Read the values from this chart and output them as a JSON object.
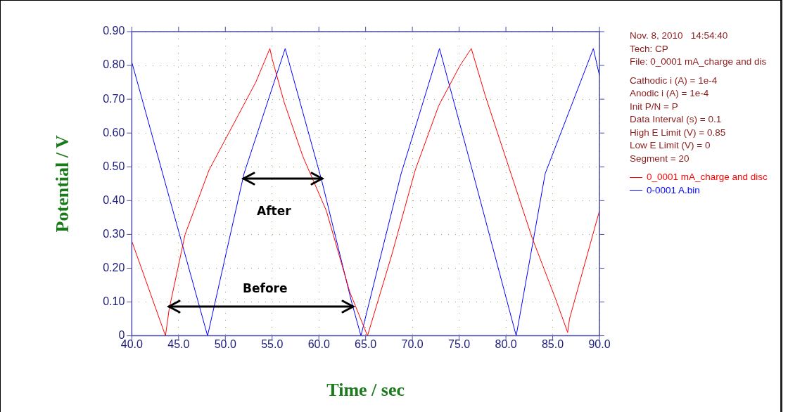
{
  "chart_data": {
    "type": "line",
    "xlabel": "Time / sec",
    "ylabel": "Potential / V",
    "xlim": [
      40,
      90
    ],
    "xticks": [
      {
        "value": 40,
        "label": "40.0"
      },
      {
        "value": 45,
        "label": "45.0"
      },
      {
        "value": 50,
        "label": "50.0"
      },
      {
        "value": 55,
        "label": "55.0"
      },
      {
        "value": 60,
        "label": "60.0"
      },
      {
        "value": 65,
        "label": "65.0"
      },
      {
        "value": 70,
        "label": "70.0"
      },
      {
        "value": 75,
        "label": "75.0"
      },
      {
        "value": 80,
        "label": "80.0"
      },
      {
        "value": 85,
        "label": "85.0"
      },
      {
        "value": 90,
        "label": "90.0"
      }
    ],
    "ylim": [
      0,
      0.9
    ],
    "yticks": [
      0,
      {
        "value": 0.1,
        "label": "0.10"
      },
      {
        "value": 0.2,
        "label": "0.20"
      },
      {
        "value": 0.3,
        "label": "0.30"
      },
      {
        "value": 0.4,
        "label": "0.40"
      },
      {
        "value": 0.5,
        "label": "0.50"
      },
      {
        "value": 0.6,
        "label": "0.60"
      },
      {
        "value": 0.7,
        "label": "0.70"
      },
      {
        "value": 0.8,
        "label": "0.80"
      },
      {
        "value": 0.9,
        "label": "0.90"
      }
    ],
    "grid": true,
    "legend": "right",
    "marker": "none",
    "line_style": "solid",
    "series": [
      {
        "name": "0_0001 mA_charge and disc",
        "color": "#ff0000",
        "x": [
          40,
          43.6,
          44.0,
          45.7,
          48.25,
          50.75,
          53.25,
          54.76,
          55.0,
          56.3,
          58.3,
          60.8,
          63.3,
          65.2,
          67.8,
          70.3,
          72.8,
          75.1,
          76.3,
          77.8,
          80.3,
          82.8,
          85.3,
          86.6,
          86.8,
          90
        ],
        "values": [
          0.28,
          0,
          0.08,
          0.3,
          0.49,
          0.62,
          0.75,
          0.85,
          0.82,
          0.69,
          0.53,
          0.37,
          0.13,
          0,
          0.24,
          0.49,
          0.68,
          0.8,
          0.85,
          0.71,
          0.5,
          0.29,
          0.11,
          0.01,
          0.05,
          0.37
        ]
      },
      {
        "name": "0-0001 A.bin",
        "color": "#0000ff",
        "x": [
          40,
          44,
          48.1,
          52.0,
          56.4,
          60.3,
          63.5,
          64.5,
          68.8,
          72.9,
          76.4,
          81.1,
          84.2,
          89.35,
          90
        ],
        "values": [
          0.81,
          0.41,
          0,
          0.48,
          0.85,
          0.46,
          0.1,
          0,
          0.48,
          0.85,
          0.49,
          0,
          0.48,
          0.85,
          0.77
        ]
      }
    ],
    "annotations": [
      "After",
      "Before",
      "Nov. 8, 2010   14:54:40",
      "Tech: CP",
      "File: 0_0001 mA_charge and dis",
      "Cathodic i (A) = 1e-4",
      "Anodic i (A) = 1e-4",
      "Init P/N = P",
      "Data Interval (s) = 0.1",
      "High E Limit (V) = 0.85",
      "Low E Limit (V) = 0",
      "Segment = 20"
    ]
  }
}
